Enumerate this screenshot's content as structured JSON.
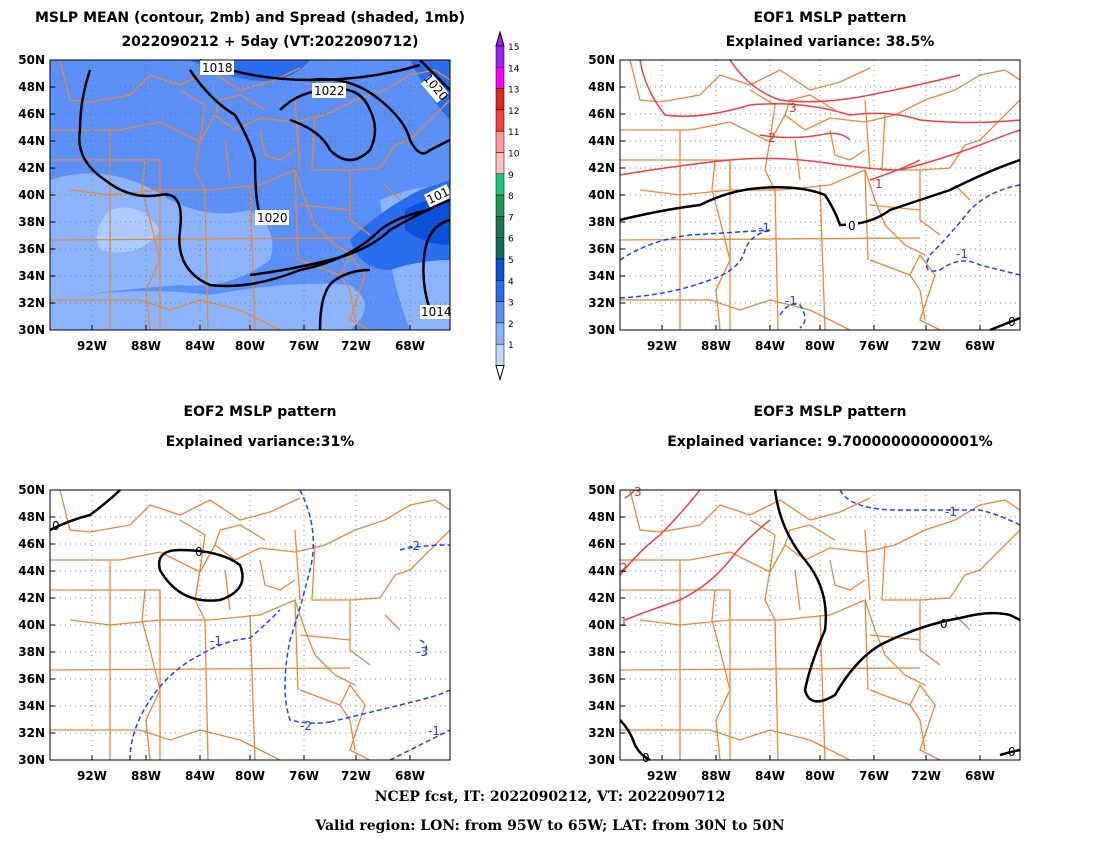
{
  "panels": [
    {
      "title1": "MSLP MEAN (contour, 2mb) and Spread (shaded, 1mb)",
      "title2": "2022090212 + 5day (VT:2022090712)"
    },
    {
      "title1": "EOF1 MSLP pattern",
      "title2": "Explained variance: 38.5%"
    },
    {
      "title1": "EOF2 MSLP pattern",
      "title2": "Explained variance:31%"
    },
    {
      "title1": "EOF3 MSLP pattern",
      "title2": "Explained variance: 9.70000000000001%"
    }
  ],
  "lat_ticks": [
    "50N",
    "48N",
    "46N",
    "44N",
    "42N",
    "40N",
    "38N",
    "36N",
    "34N",
    "32N",
    "30N"
  ],
  "lon_ticks": [
    "92W",
    "88W",
    "84W",
    "80W",
    "76W",
    "72W",
    "68W"
  ],
  "colorbar": {
    "labels": [
      "15",
      "14",
      "13",
      "12",
      "11",
      "10",
      "9",
      "8",
      "7",
      "6",
      "5",
      "4",
      "3",
      "2",
      "1"
    ],
    "colors": [
      "#a020f0",
      "#ff00ff",
      "#e3261e",
      "#ff3a3a",
      "#ff9a9a",
      "#ffc0c0",
      "#18c878",
      "#1a9a50",
      "#157850",
      "#0f6a60",
      "#0a50d8",
      "#2a6ef0",
      "#5a90f8",
      "#8cb4fc",
      "#c0d8ff"
    ]
  },
  "contour_labels": {
    "mean": [
      "1018",
      "1022",
      "1020",
      "1020",
      "1014",
      "101"
    ],
    "eof1": [
      "3",
      "2",
      "1",
      "0",
      "-1",
      "-1",
      "-1",
      "0"
    ],
    "eof2": [
      "0",
      "0",
      "-1",
      "-2",
      "-3",
      "-2",
      "-1"
    ],
    "eof3": [
      "3",
      "2",
      "1",
      "-1",
      "0",
      "0",
      "0"
    ]
  },
  "footer": {
    "line1": "NCEP fcst, IT: 2022090212, VT: 2022090712",
    "line2": "Valid region: LON: from 95W to 65W; LAT: from 30N to 50N"
  }
}
